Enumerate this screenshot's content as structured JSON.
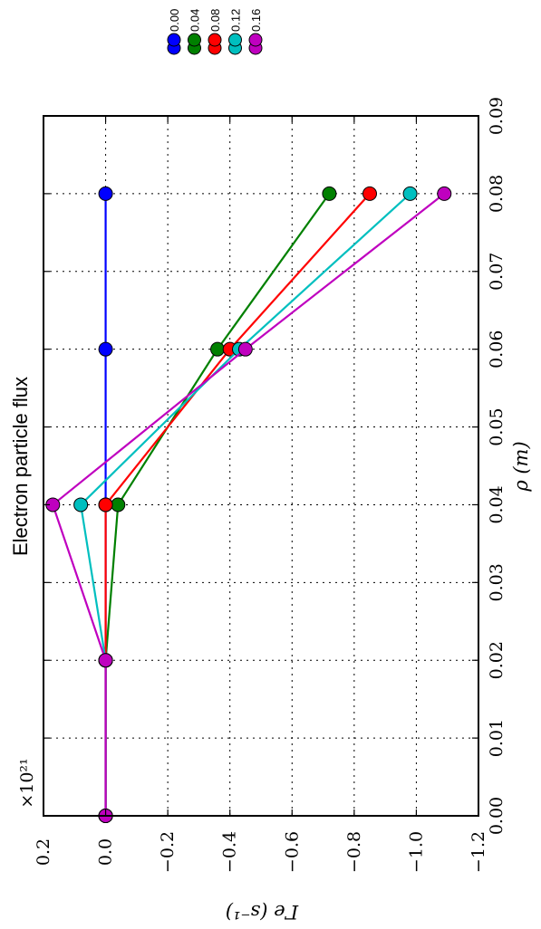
{
  "chart_data": {
    "type": "line",
    "title": "Electron particle flux",
    "xlabel": "ρ (m)",
    "ylabel": "Γe (s⁻¹)",
    "y_multiplier": "×10²¹",
    "x": [
      0.0,
      0.02,
      0.04,
      0.06,
      0.08
    ],
    "xlim": [
      0.0,
      0.09
    ],
    "ylim": [
      -1.2,
      0.2
    ],
    "x_ticks": [
      "0.00",
      "0.01",
      "0.02",
      "0.03",
      "0.04",
      "0.05",
      "0.06",
      "0.07",
      "0.08",
      "0.09"
    ],
    "y_ticks": [
      "0.2",
      "0.0",
      "−0.2",
      "−0.4",
      "−0.6",
      "−0.8",
      "−1.0",
      "−1.2"
    ],
    "grid": true,
    "legend_position": "top",
    "series": [
      {
        "name": "0.00",
        "color": "#0000ff",
        "values": [
          0.0,
          0.0,
          0.0,
          0.0,
          0.0
        ]
      },
      {
        "name": "0.04",
        "color": "#008000",
        "values": [
          0.0,
          0.0,
          -0.04,
          -0.36,
          -0.72
        ]
      },
      {
        "name": "0.08",
        "color": "#ff0000",
        "values": [
          0.0,
          0.0,
          0.0,
          -0.4,
          -0.85
        ]
      },
      {
        "name": "0.12",
        "color": "#00bfbf",
        "values": [
          0.0,
          0.0,
          0.08,
          -0.43,
          -0.98
        ]
      },
      {
        "name": "0.16",
        "color": "#bf00bf",
        "values": [
          0.0,
          0.0,
          0.17,
          -0.45,
          -1.09
        ]
      }
    ]
  }
}
